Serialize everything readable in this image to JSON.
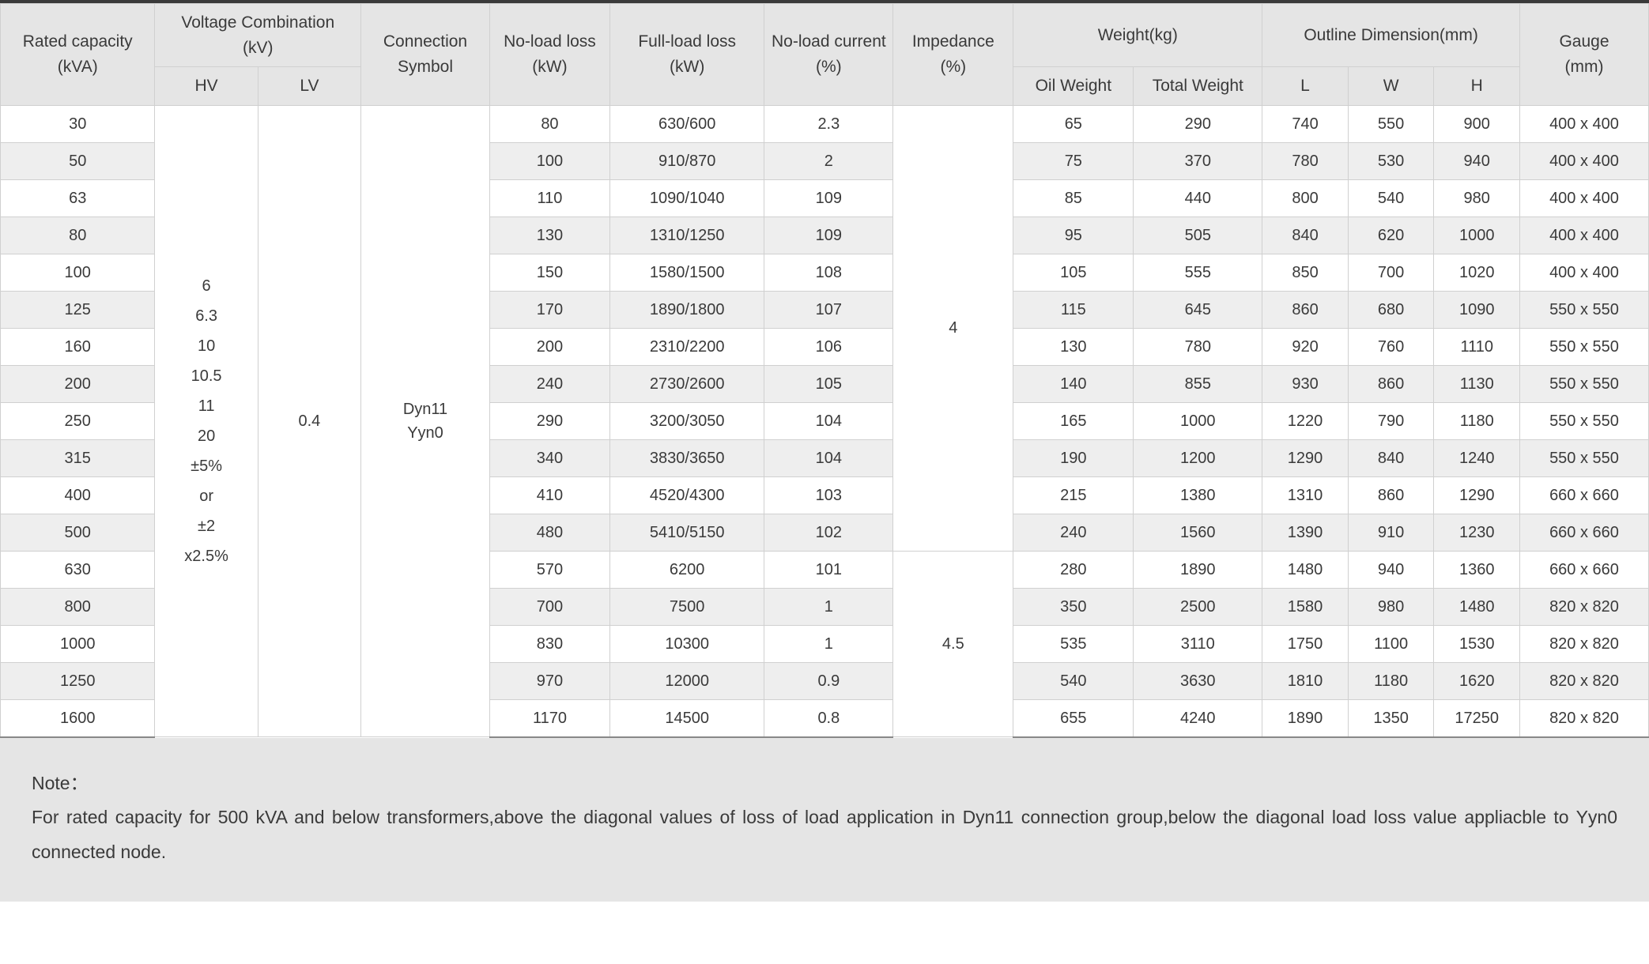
{
  "headers": {
    "rated_capacity": "Rated capacity\n(kVA)",
    "voltage_combination": "Voltage Combination\n(kV)",
    "hv": "HV",
    "lv": "LV",
    "connection_symbol": "Connection\nSymbol",
    "no_load_loss": "No-load loss\n(kW)",
    "full_load_loss": "Full-load loss\n(kW)",
    "no_load_current": "No-load current\n(%)",
    "impedance": "Impedance\n(%)",
    "weight": "Weight(kg)",
    "oil_weight": "Oil Weight",
    "total_weight": "Total Weight",
    "outline_dimension": "Outline Dimension(mm)",
    "dim_l": "L",
    "dim_w": "W",
    "dim_h": "H",
    "gauge": "Gauge\n(mm)"
  },
  "merged": {
    "hv_values": "6\n6.3\n10\n10.5\n11\n20\n±5%\nor\n±2\nx2.5%",
    "lv_value": "0.4",
    "connection_value": "Dyn11\nYyn0",
    "impedance_1": "4",
    "impedance_2": "4.5"
  },
  "rows": [
    {
      "cap": "30",
      "nll": "80",
      "fll": "630/600",
      "nlc": "2.3",
      "oil": "65",
      "total": "290",
      "l": "740",
      "w": "550",
      "h": "900",
      "g": "400 x 400"
    },
    {
      "cap": "50",
      "nll": "100",
      "fll": "910/870",
      "nlc": "2",
      "oil": "75",
      "total": "370",
      "l": "780",
      "w": "530",
      "h": "940",
      "g": "400 x 400"
    },
    {
      "cap": "63",
      "nll": "110",
      "fll": "1090/1040",
      "nlc": "109",
      "oil": "85",
      "total": "440",
      "l": "800",
      "w": "540",
      "h": "980",
      "g": "400 x 400"
    },
    {
      "cap": "80",
      "nll": "130",
      "fll": "1310/1250",
      "nlc": "109",
      "oil": "95",
      "total": "505",
      "l": "840",
      "w": "620",
      "h": "1000",
      "g": "400 x 400"
    },
    {
      "cap": "100",
      "nll": "150",
      "fll": "1580/1500",
      "nlc": "108",
      "oil": "105",
      "total": "555",
      "l": "850",
      "w": "700",
      "h": "1020",
      "g": "400 x 400"
    },
    {
      "cap": "125",
      "nll": "170",
      "fll": "1890/1800",
      "nlc": "107",
      "oil": "115",
      "total": "645",
      "l": "860",
      "w": "680",
      "h": "1090",
      "g": "550 x 550"
    },
    {
      "cap": "160",
      "nll": "200",
      "fll": "2310/2200",
      "nlc": "106",
      "oil": "130",
      "total": "780",
      "l": "920",
      "w": "760",
      "h": "1110",
      "g": "550 x 550"
    },
    {
      "cap": "200",
      "nll": "240",
      "fll": "2730/2600",
      "nlc": "105",
      "oil": "140",
      "total": "855",
      "l": "930",
      "w": "860",
      "h": "1130",
      "g": "550 x 550"
    },
    {
      "cap": "250",
      "nll": "290",
      "fll": "3200/3050",
      "nlc": "104",
      "oil": "165",
      "total": "1000",
      "l": "1220",
      "w": "790",
      "h": "1180",
      "g": "550 x 550"
    },
    {
      "cap": "315",
      "nll": "340",
      "fll": "3830/3650",
      "nlc": "104",
      "oil": "190",
      "total": "1200",
      "l": "1290",
      "w": "840",
      "h": "1240",
      "g": "550 x 550"
    },
    {
      "cap": "400",
      "nll": "410",
      "fll": "4520/4300",
      "nlc": "103",
      "oil": "215",
      "total": "1380",
      "l": "1310",
      "w": "860",
      "h": "1290",
      "g": "660 x 660"
    },
    {
      "cap": "500",
      "nll": "480",
      "fll": "5410/5150",
      "nlc": "102",
      "oil": "240",
      "total": "1560",
      "l": "1390",
      "w": "910",
      "h": "1230",
      "g": "660 x 660"
    },
    {
      "cap": "630",
      "nll": "570",
      "fll": "6200",
      "nlc": "101",
      "oil": "280",
      "total": "1890",
      "l": "1480",
      "w": "940",
      "h": "1360",
      "g": "660 x 660"
    },
    {
      "cap": "800",
      "nll": "700",
      "fll": "7500",
      "nlc": "1",
      "oil": "350",
      "total": "2500",
      "l": "1580",
      "w": "980",
      "h": "1480",
      "g": "820 x 820"
    },
    {
      "cap": "1000",
      "nll": "830",
      "fll": "10300",
      "nlc": "1",
      "oil": "535",
      "total": "3110",
      "l": "1750",
      "w": "1100",
      "h": "1530",
      "g": "820 x 820"
    },
    {
      "cap": "1250",
      "nll": "970",
      "fll": "12000",
      "nlc": "0.9",
      "oil": "540",
      "total": "3630",
      "l": "1810",
      "w": "1180",
      "h": "1620",
      "g": "820 x 820"
    },
    {
      "cap": "1600",
      "nll": "1170",
      "fll": "14500",
      "nlc": "0.8",
      "oil": "655",
      "total": "4240",
      "l": "1890",
      "w": "1350",
      "h": "17250",
      "g": "820 x 820"
    }
  ],
  "note_label": "Note：",
  "note_text": "For rated capacity for 500 kVA and below transformers,above the diagonal values of loss of load application in Dyn11 connection group,below the diagonal load loss value appliacble to Yyn0 connected node.",
  "colwidths": {
    "cap": "9%",
    "hv": "6%",
    "lv": "6%",
    "conn": "7.5%",
    "nll": "7%",
    "fll": "9%",
    "nlc": "7.5%",
    "imp": "7%",
    "oil": "7%",
    "total": "7.5%",
    "l": "5%",
    "w": "5%",
    "h": "5%",
    "g": "7.5%"
  },
  "colors": {
    "header_bg": "#e5e5e5",
    "stripe_bg": "#eeeeee",
    "border": "#d0d0d0",
    "text": "#3a3a3a"
  }
}
